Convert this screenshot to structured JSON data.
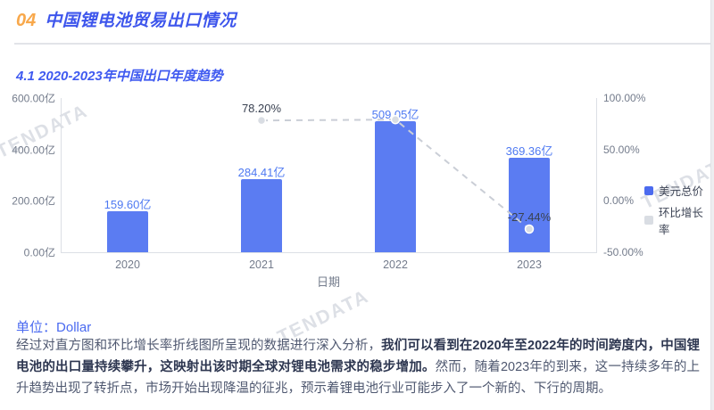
{
  "page": {
    "section_number": "04",
    "section_title": "中国锂电池贸易出口情况",
    "subsection_title": "4.1 2020-2023年中国出口年度趋势",
    "unit_label": "单位：",
    "unit_value": "Dollar",
    "watermark": "TENDATA"
  },
  "colors": {
    "accent_orange": "#F8A84B",
    "title_blue": "#3D55EC",
    "bar_blue": "#5B7CF2",
    "bar_label_blue": "#4E79F2",
    "line_gray": "#CACED6",
    "marker_fill": "#D9DDE3",
    "axis_text_gray": "#747C8C",
    "growth_label_dark": "#3A4252"
  },
  "chart_data": {
    "type": "bar+line",
    "categories": [
      "2020",
      "2021",
      "2022",
      "2023"
    ],
    "series": [
      {
        "name": "美元总价",
        "type": "bar",
        "axis": "left",
        "unit": "亿",
        "values": [
          159.6,
          284.41,
          509.05,
          369.36
        ],
        "labels": [
          "159.60亿",
          "284.41亿",
          "509.05亿",
          "369.36亿"
        ]
      },
      {
        "name": "环比增长率",
        "type": "line",
        "axis": "right",
        "unit": "%",
        "values": [
          null,
          78.2,
          78.99,
          -27.44
        ],
        "labels": [
          "",
          "78.20%",
          "",
          "-27.44%"
        ]
      }
    ],
    "xlabel": "日期",
    "left_axis": {
      "min": 0,
      "max": 600,
      "ticks": [
        "600.00亿",
        "400.00亿",
        "200.00亿",
        "0.00亿"
      ]
    },
    "right_axis": {
      "min": -50,
      "max": 100,
      "ticks": [
        "100.00%",
        "50.00%",
        "0.00%",
        "-50.00%"
      ]
    },
    "legend": [
      {
        "label": "美元总价",
        "color": "#4C6BEF"
      },
      {
        "label": "环比增长率",
        "color": "#D9DDE3"
      }
    ],
    "grid": false,
    "legend_position": "top-right"
  },
  "analysis": {
    "lead": "经过对直方图和环比增长率折线图所呈现的数据进行深入分析，",
    "highlight": "我们可以看到在2020年至2022年的时间跨度内，中国锂电池的出口量持续攀升，这映射出该时期全球对锂电池需求的稳步增加。",
    "rest": "然而，随着2023年的到来，这一持续多年的上升趋势出现了转折点，市场开始出现降温的征兆，预示着锂电池行业可能步入了一个新的、下行的周期。"
  }
}
